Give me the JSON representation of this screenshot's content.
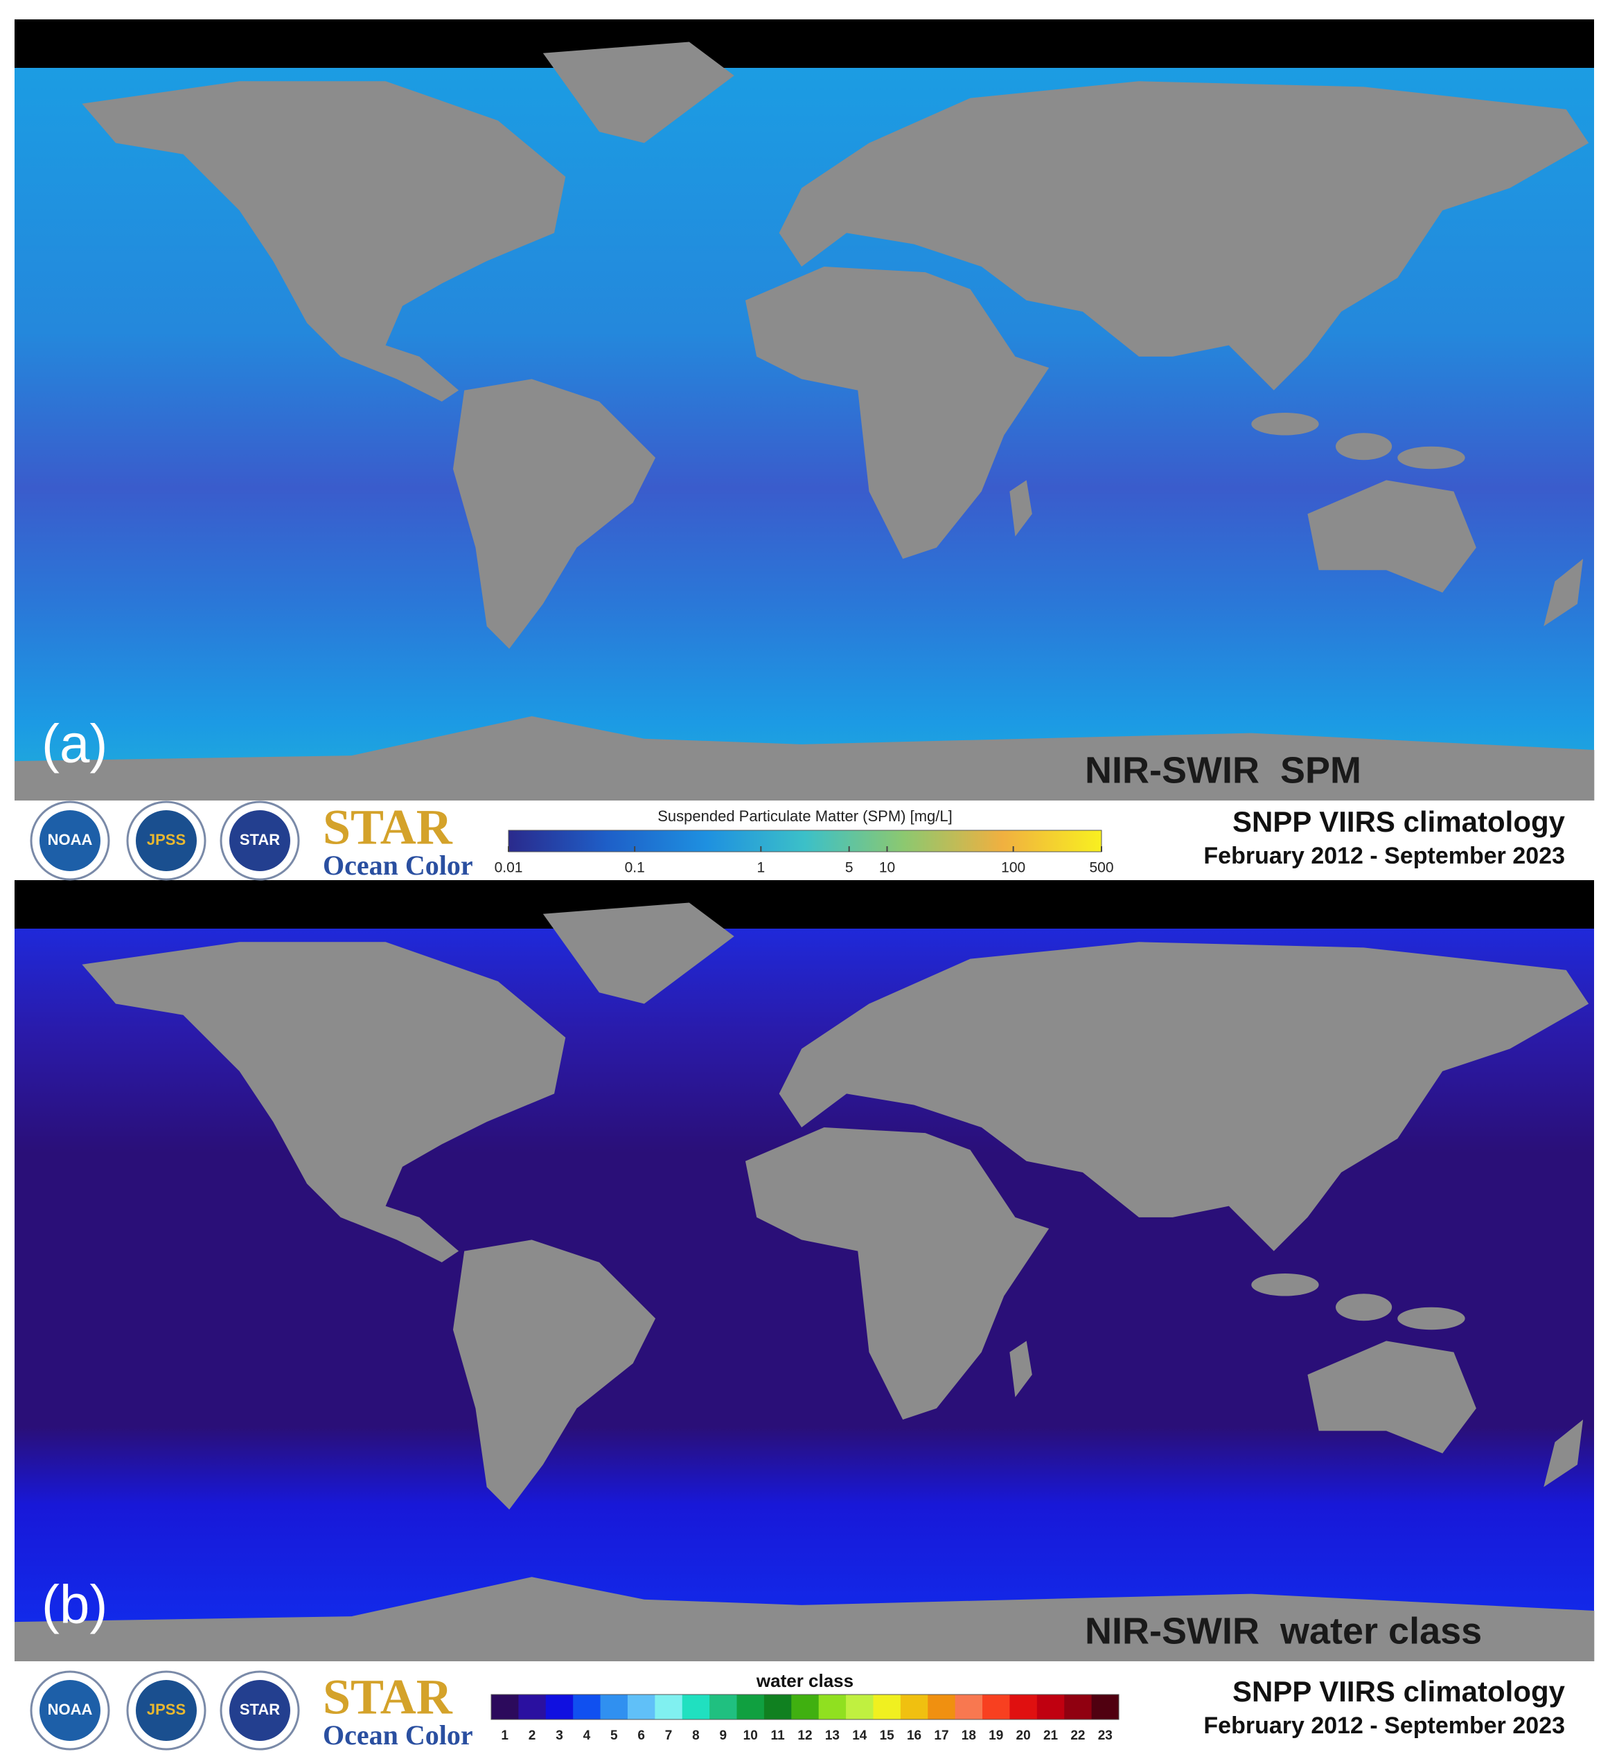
{
  "panels": [
    {
      "label": "(a)",
      "title": "NIR-SWIR  SPM",
      "colorbar": {
        "title": "Suspended Particulate Matter (SPM) [mg/L]",
        "scale": "log",
        "range": [
          0.01,
          500
        ],
        "ticks": [
          0.01,
          0.1,
          1,
          5,
          10,
          100,
          500
        ],
        "colors": [
          "#2a2a8c",
          "#1e5fc8",
          "#1e90e0",
          "#3cc0c8",
          "#8cc870",
          "#f0b040",
          "#f8f020"
        ]
      }
    },
    {
      "label": "(b)",
      "title": "NIR-SWIR  water class",
      "colorbar": {
        "title": "water class",
        "classes": [
          1,
          2,
          3,
          4,
          5,
          6,
          7,
          8,
          9,
          10,
          11,
          12,
          13,
          14,
          15,
          16,
          17,
          18,
          19,
          20,
          21,
          22,
          23
        ],
        "colors": [
          "#2c0a5c",
          "#2a10a0",
          "#1010e0",
          "#1050f0",
          "#3090f0",
          "#60c0f8",
          "#80f0f0",
          "#20e0c0",
          "#20c080",
          "#10a040",
          "#108020",
          "#40b010",
          "#90e020",
          "#c0f040",
          "#f0f020",
          "#f0c010",
          "#f09010",
          "#f87850",
          "#f84020",
          "#e01010",
          "#c00010",
          "#900010",
          "#500010"
        ]
      }
    }
  ],
  "footer": {
    "logos": [
      "NOAA",
      "JPSS",
      "STAR"
    ],
    "brand": "STAR",
    "brand_sub": "Ocean Color",
    "caption_1": "SNPP VIIRS climatology",
    "caption_2": "February 2012 - September 2023"
  }
}
